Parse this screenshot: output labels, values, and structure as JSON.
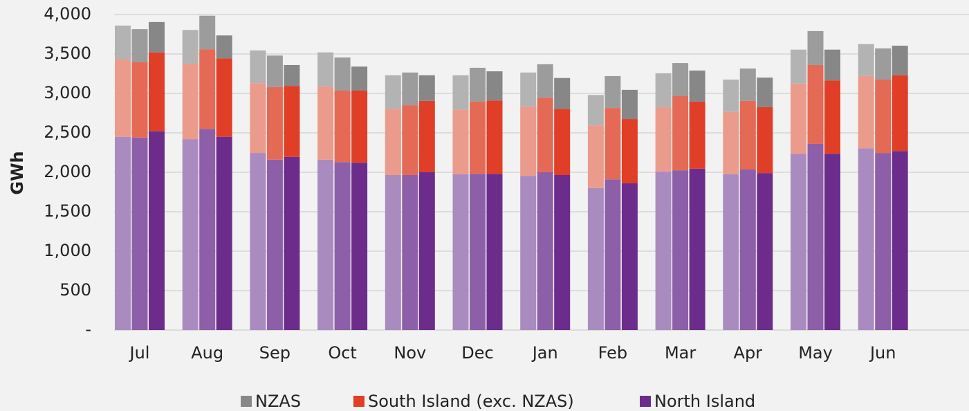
{
  "chart_data": {
    "type": "grouped_stacked_bar",
    "y_label": "GWh",
    "categories": [
      "Jul",
      "Aug",
      "Sep",
      "Oct",
      "Nov",
      "Dec",
      "Jan",
      "Feb",
      "Mar",
      "Apr",
      "May",
      "Jun"
    ],
    "series": [
      {
        "name": "NZAS",
        "color": "#878787",
        "bar_colors": [
          "#b3b3b3",
          "#9c9c9c",
          "#878787"
        ],
        "values": [
          [
            430,
            420,
            385
          ],
          [
            430,
            425,
            290
          ],
          [
            415,
            400,
            265
          ],
          [
            430,
            420,
            305
          ],
          [
            425,
            415,
            325
          ],
          [
            435,
            430,
            370
          ],
          [
            430,
            425,
            390
          ],
          [
            385,
            405,
            370
          ],
          [
            430,
            420,
            395
          ],
          [
            410,
            410,
            375
          ],
          [
            430,
            430,
            390
          ],
          [
            405,
            395,
            375
          ]
        ]
      },
      {
        "name": "South Island (exc. NZAS)",
        "color": "#e03e26",
        "bar_colors": [
          "#eb9b8b",
          "#e56a55",
          "#e03e26"
        ],
        "values": [
          [
            980,
            955,
            1000
          ],
          [
            955,
            1010,
            995
          ],
          [
            885,
            920,
            900
          ],
          [
            930,
            905,
            915
          ],
          [
            840,
            885,
            905
          ],
          [
            820,
            915,
            930
          ],
          [
            880,
            945,
            840
          ],
          [
            795,
            905,
            815
          ],
          [
            815,
            940,
            850
          ],
          [
            790,
            870,
            835
          ],
          [
            890,
            1000,
            930
          ],
          [
            915,
            930,
            960
          ]
        ]
      },
      {
        "name": "North Island",
        "color": "#6b2c8c",
        "bar_colors": [
          "#a98bc0",
          "#8c5fa8",
          "#6b2c8c"
        ],
        "values": [
          [
            2450,
            2440,
            2520
          ],
          [
            2420,
            2550,
            2450
          ],
          [
            2245,
            2160,
            2195
          ],
          [
            2160,
            2130,
            2120
          ],
          [
            1965,
            1965,
            2000
          ],
          [
            1975,
            1980,
            1980
          ],
          [
            1955,
            2000,
            1965
          ],
          [
            1800,
            1910,
            1860
          ],
          [
            2010,
            2025,
            2045
          ],
          [
            1975,
            2035,
            1990
          ],
          [
            2235,
            2360,
            2235
          ],
          [
            2305,
            2245,
            2270
          ]
        ]
      }
    ],
    "ylim": [
      0,
      4000
    ],
    "yticks": [
      {
        "value": 0,
        "label": "-"
      },
      500,
      {
        "value": 1000,
        "label": "1,000"
      },
      {
        "value": 1500,
        "label": "1,500"
      },
      {
        "value": 2000,
        "label": "2,000"
      },
      {
        "value": 2500,
        "label": "2,500"
      },
      {
        "value": 3000,
        "label": "3,000"
      },
      {
        "value": 3500,
        "label": "3,500"
      },
      {
        "value": 4000,
        "label": "4,000"
      }
    ],
    "grid": true,
    "legend": "bottom"
  }
}
